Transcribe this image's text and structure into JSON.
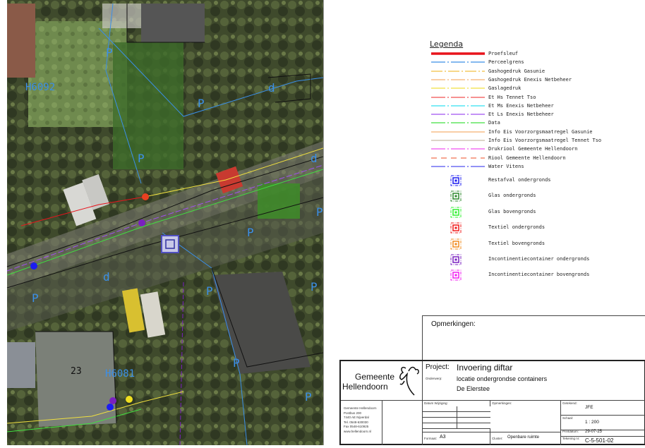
{
  "map": {
    "labels": {
      "parcel_top": "H6092",
      "parcel_bottom": "H6081",
      "house_number": "23"
    },
    "p_markers": [
      "P",
      "P",
      "P",
      "P",
      "P",
      "P",
      "P",
      "P",
      "P",
      "P"
    ],
    "d_markers": [
      "d",
      "d",
      "d"
    ]
  },
  "legend": {
    "title": "Legenda",
    "lines": [
      {
        "label": "Proefsleuf",
        "color": "#e8141c",
        "style": "solid-thick"
      },
      {
        "label": "Perceelgrens",
        "color": "#3b8fe8",
        "style": "dash-marker"
      },
      {
        "label": "Gashogedruk Gasunie",
        "color": "#f2c040",
        "style": "dash-dot"
      },
      {
        "label": "Gashogedruk Enexis Netbeheer",
        "color": "#f5b070",
        "style": "dash-marker"
      },
      {
        "label": "Gaslagedruk",
        "color": "#f0e040",
        "style": "dash-marker"
      },
      {
        "label": "Et Hs Tennet Tso",
        "color": "#f05050",
        "style": "dash-marker"
      },
      {
        "label": "Et Ms Enexis Netbeheer",
        "color": "#30e0f0",
        "style": "dash-marker"
      },
      {
        "label": "Et Ls Enexis Netbeheer",
        "color": "#a050f0",
        "style": "dash-marker"
      },
      {
        "label": "Data",
        "color": "#40e040",
        "style": "dash-marker"
      },
      {
        "label": "Info Eis Voorzorgsmaatregel Gasunie",
        "color": "#f5b070",
        "style": "solid"
      },
      {
        "label": "Info Eis Voorzorgsmaatregel Tennet Tso",
        "color": "#c8bca8",
        "style": "solid"
      },
      {
        "label": "Drukriool Gemeente Hellendoorn",
        "color": "#f050f0",
        "style": "dash-marker"
      },
      {
        "label": "Riool Gemeente Hellendoorn",
        "color": "#f07050",
        "style": "dashed"
      },
      {
        "label": "Water Vitens",
        "color": "#5050f0",
        "style": "dash-marker"
      }
    ],
    "symbols": [
      {
        "label": "Restafval ondergronds",
        "color": "#1c1cf0"
      },
      {
        "label": "Glas ondergronds",
        "color": "#2e8a2e"
      },
      {
        "label": "Glas bovengronds",
        "color": "#30f030"
      },
      {
        "label": "Textiel ondergronds",
        "color": "#f01c1c"
      },
      {
        "label": "Textiel bovengronds",
        "color": "#f08c20"
      },
      {
        "label": "Incontinentiecontainer ondergronds",
        "color": "#7a20c0"
      },
      {
        "label": "Incontinentiecontainer bovengronds",
        "color": "#f020f0"
      }
    ]
  },
  "remarks": {
    "title": "Opmerkingen:"
  },
  "titleblock": {
    "org_line1": "Gemeente",
    "org_line2": "Hellendoorn",
    "address": [
      "Gemeente Hellendoorn",
      "Postbus 200",
      "7440 AE  Nijverdal",
      "Tel. 0548-630030",
      "Fax 0548-610925",
      "www.hellendoorn.nl"
    ],
    "project_label": "Project:",
    "project": "Invoering diftar",
    "subject_label": "Onderwerp:",
    "subject_line1": "locatie ondergrondse containers",
    "subject_line2": "De Elerstee",
    "date_change_label": "Datum Wijziging:",
    "remarks_label": "Opmerkingen:",
    "format_label": "Formaat:",
    "format": "A3",
    "cluster_label": "Cluster:",
    "cluster": "Openbare ruimte",
    "drawn_label": "Getekend:",
    "drawn": "JFE",
    "scale_label": "Schaal:",
    "scale": "1 : 200",
    "printdate_label": "Printdatum:",
    "printdate": "29-07-25",
    "drawing_label": "Tekening nr:",
    "drawing": "C-5-501-02"
  }
}
